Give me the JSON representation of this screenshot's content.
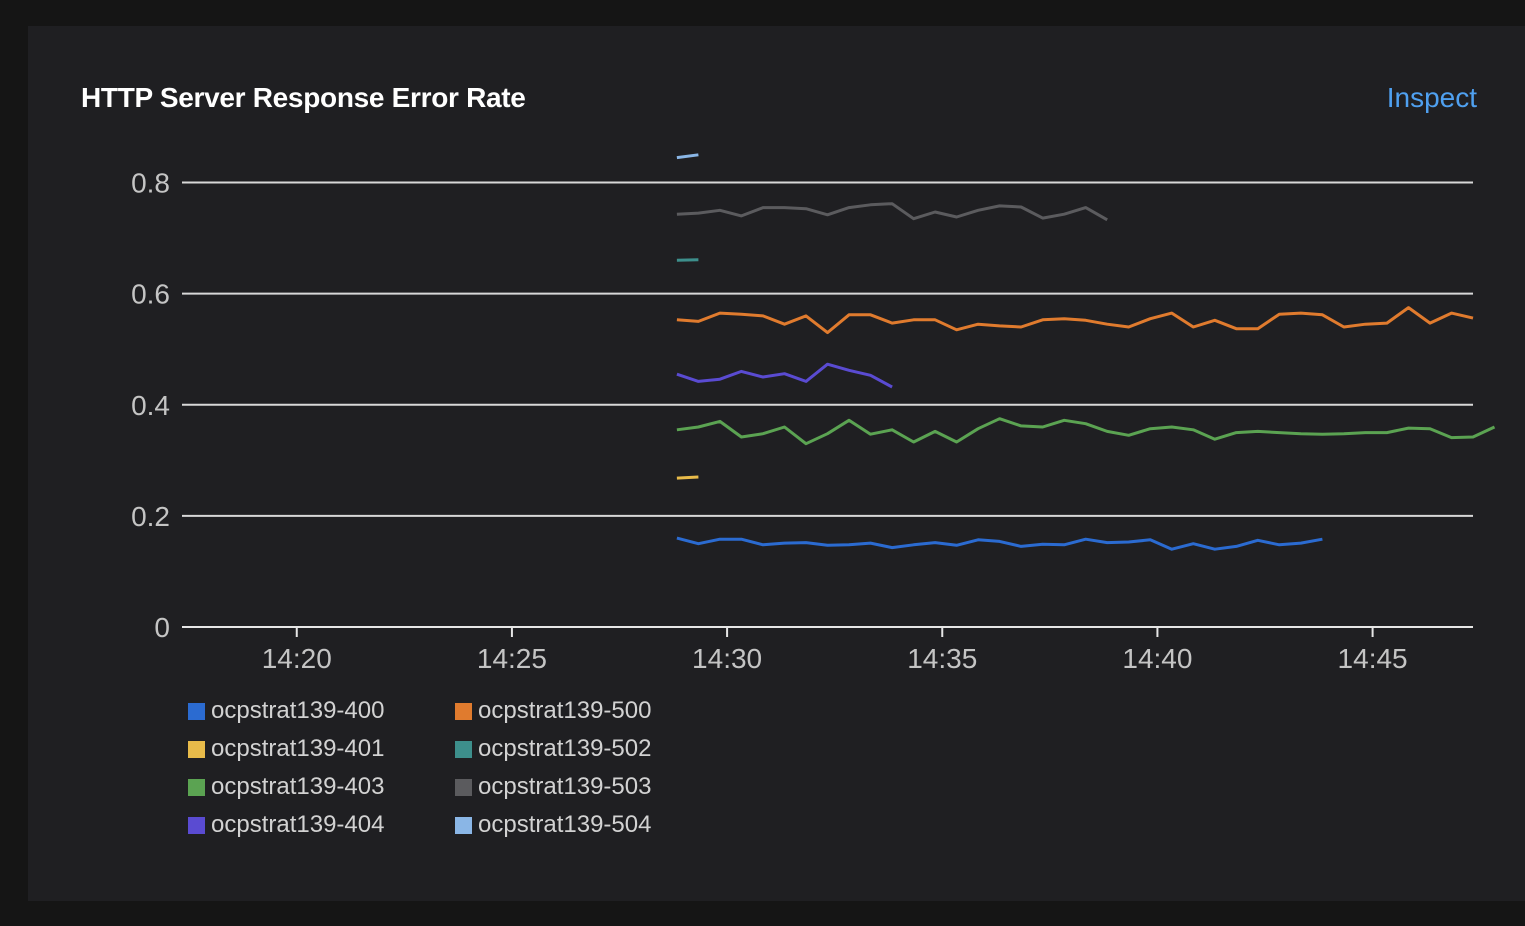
{
  "card": {
    "title": "HTTP Server Response Error Rate",
    "inspect_label": "Inspect"
  },
  "chart_data": {
    "type": "line",
    "title": "HTTP Server Response Error Rate",
    "xlabel": "",
    "ylabel": "",
    "x_ticks": [
      "14:20",
      "14:25",
      "14:30",
      "14:35",
      "14:40",
      "14:45"
    ],
    "y_ticks": [
      "0",
      "0.2",
      "0.4",
      "0.6",
      "0.8"
    ],
    "xlim": [
      "14:17:20",
      "14:47:20"
    ],
    "ylim": [
      0,
      0.9
    ],
    "grid": true,
    "legend_position": "bottom",
    "series": [
      {
        "name": "ocpstrat139-400",
        "color": "#2b6bd1",
        "x_start": "14:28:50",
        "step_seconds": 30,
        "values": [
          0.16,
          0.15,
          0.158,
          0.158,
          0.148,
          0.151,
          0.152,
          0.147,
          0.148,
          0.151,
          0.143,
          0.148,
          0.152,
          0.147,
          0.157,
          0.154,
          0.145,
          0.149,
          0.148,
          0.158,
          0.152,
          0.153,
          0.157,
          0.14,
          0.15,
          0.14,
          0.145,
          0.156,
          0.148,
          0.151,
          0.158
        ]
      },
      {
        "name": "ocpstrat139-401",
        "color": "#e8bb4a",
        "x_start": "14:28:50",
        "step_seconds": 30,
        "values": [
          0.268,
          0.27
        ]
      },
      {
        "name": "ocpstrat139-403",
        "color": "#5ba352",
        "x_start": "14:28:50",
        "step_seconds": 30,
        "values": [
          0.355,
          0.36,
          0.37,
          0.342,
          0.348,
          0.36,
          0.33,
          0.348,
          0.372,
          0.347,
          0.355,
          0.333,
          0.352,
          0.333,
          0.357,
          0.375,
          0.362,
          0.36,
          0.372,
          0.366,
          0.352,
          0.345,
          0.357,
          0.36,
          0.355,
          0.338,
          0.35,
          0.352,
          0.35,
          0.348,
          0.347,
          0.348,
          0.35,
          0.35,
          0.358,
          0.357,
          0.341,
          0.342,
          0.36
        ]
      },
      {
        "name": "ocpstrat139-404",
        "color": "#5a4bd2",
        "x_start": "14:28:50",
        "step_seconds": 30,
        "values": [
          0.455,
          0.442,
          0.446,
          0.46,
          0.45,
          0.456,
          0.442,
          0.473,
          0.462,
          0.453,
          0.432
        ]
      },
      {
        "name": "ocpstrat139-500",
        "color": "#e07b2e",
        "x_start": "14:28:50",
        "step_seconds": 30,
        "values": [
          0.553,
          0.55,
          0.565,
          0.563,
          0.56,
          0.545,
          0.56,
          0.53,
          0.562,
          0.562,
          0.547,
          0.553,
          0.553,
          0.535,
          0.545,
          0.542,
          0.54,
          0.553,
          0.555,
          0.552,
          0.545,
          0.54,
          0.555,
          0.565,
          0.54,
          0.552,
          0.537,
          0.537,
          0.563,
          0.565,
          0.562,
          0.54,
          0.545,
          0.547,
          0.575,
          0.547,
          0.565,
          0.556
        ]
      },
      {
        "name": "ocpstrat139-502",
        "color": "#3d8f8c",
        "x_start": "14:28:50",
        "step_seconds": 30,
        "values": [
          0.66,
          0.661
        ]
      },
      {
        "name": "ocpstrat139-503",
        "color": "#5b5b5e",
        "x_start": "14:28:50",
        "step_seconds": 30,
        "values": [
          0.743,
          0.745,
          0.75,
          0.74,
          0.755,
          0.755,
          0.753,
          0.742,
          0.755,
          0.76,
          0.762,
          0.735,
          0.747,
          0.738,
          0.75,
          0.758,
          0.756,
          0.736,
          0.743,
          0.755,
          0.733
        ]
      },
      {
        "name": "ocpstrat139-504",
        "color": "#8ab6e6",
        "x_start": "14:28:50",
        "step_seconds": 30,
        "values": [
          0.845,
          0.85
        ]
      }
    ]
  }
}
